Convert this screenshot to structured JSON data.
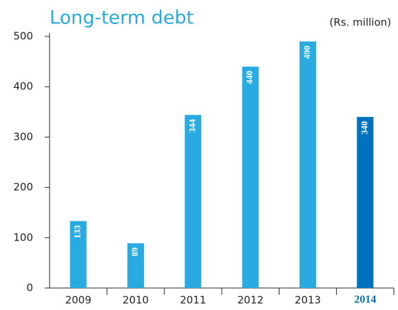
{
  "chart_data": {
    "type": "bar",
    "title": "Long-term debt",
    "subtitle": "(Rs. million)",
    "categories": [
      "2009",
      "2010",
      "2011",
      "2012",
      "2013",
      "2014"
    ],
    "values": [
      133,
      89,
      344,
      440,
      490,
      340
    ],
    "color": "#29abe2",
    "colors": [
      "#29abe2",
      "#29abe2",
      "#29abe2",
      "#29abe2",
      "#29abe2",
      "#0071bc"
    ],
    "ylim": [
      0,
      500
    ],
    "yticks": [
      0,
      100,
      200,
      300,
      400,
      500
    ],
    "grid": false
  }
}
